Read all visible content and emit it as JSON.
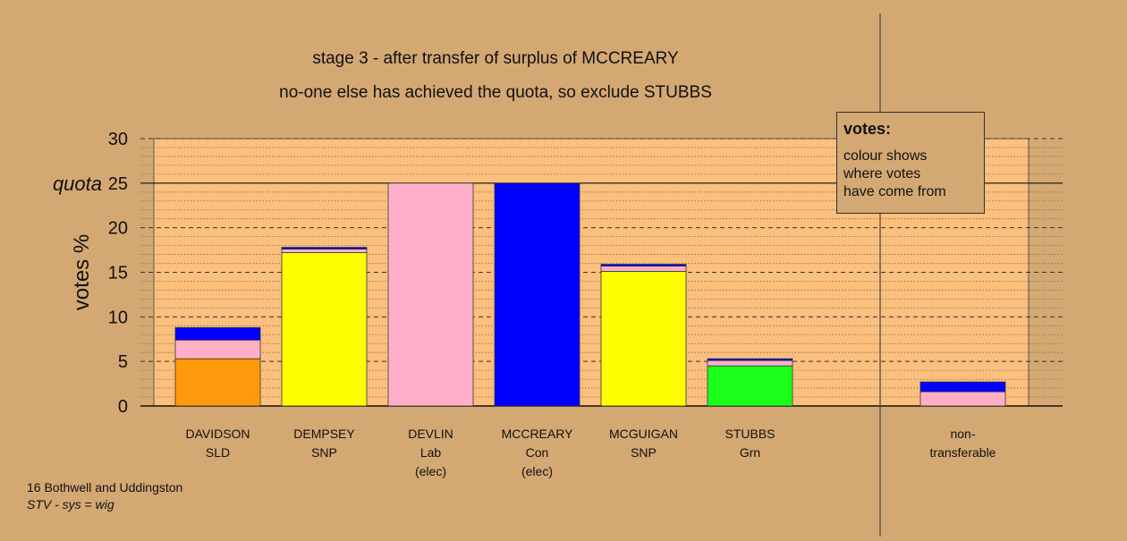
{
  "title_lines": [
    "stage 3 - after transfer of surplus of MCCREARY",
    "no-one else has achieved the quota, so exclude STUBBS"
  ],
  "legend": {
    "title": "votes:",
    "lines": [
      "colour shows",
      "where votes",
      "have come from"
    ]
  },
  "footnote": {
    "line1": "16 Bothwell and Uddingston",
    "line2": "STV - sys = wig"
  },
  "colors": {
    "background": "#d4a873",
    "plot_background": "#fbbf7e",
    "SLD": "#ff9a0c",
    "Lab": "#ffb0c8",
    "Con": "#0000ff",
    "SNP": "#ffff00",
    "Grn": "#1aff1a"
  },
  "chart_data": {
    "type": "bar",
    "stacked": true,
    "ylabel": "votes %",
    "ylim": [
      0,
      30
    ],
    "yticks": [
      0,
      5,
      10,
      15,
      20,
      25,
      30
    ],
    "quota": 25,
    "quota_label": "quota",
    "categories": [
      {
        "name": "DAVIDSON",
        "party": "SLD",
        "note": ""
      },
      {
        "name": "DEMPSEY",
        "party": "SNP",
        "note": ""
      },
      {
        "name": "DEVLIN",
        "party": "Lab",
        "note": "(elec)"
      },
      {
        "name": "MCCREARY",
        "party": "Con",
        "note": "(elec)"
      },
      {
        "name": "MCGUIGAN",
        "party": "SNP",
        "note": ""
      },
      {
        "name": "STUBBS",
        "party": "Grn",
        "note": ""
      },
      {
        "name": "non-",
        "party": "transferable",
        "note": ""
      }
    ],
    "bars": [
      {
        "segments": [
          {
            "from": "SLD",
            "value": 5.3
          },
          {
            "from": "Lab",
            "value": 2.1
          },
          {
            "from": "Con",
            "value": 1.4
          }
        ]
      },
      {
        "segments": [
          {
            "from": "SNP",
            "value": 17.2
          },
          {
            "from": "Lab",
            "value": 0.4
          },
          {
            "from": "Con",
            "value": 0.2
          }
        ]
      },
      {
        "segments": [
          {
            "from": "Lab",
            "value": 25.0
          }
        ]
      },
      {
        "segments": [
          {
            "from": "Con",
            "value": 25.0
          }
        ]
      },
      {
        "segments": [
          {
            "from": "SNP",
            "value": 15.1
          },
          {
            "from": "Lab",
            "value": 0.6
          },
          {
            "from": "Con",
            "value": 0.2
          }
        ]
      },
      {
        "segments": [
          {
            "from": "Grn",
            "value": 4.5
          },
          {
            "from": "Lab",
            "value": 0.6
          },
          {
            "from": "Con",
            "value": 0.2
          }
        ]
      },
      {
        "segments": [
          {
            "from": "Lab",
            "value": 1.6
          },
          {
            "from": "Con",
            "value": 1.1
          }
        ]
      }
    ]
  }
}
